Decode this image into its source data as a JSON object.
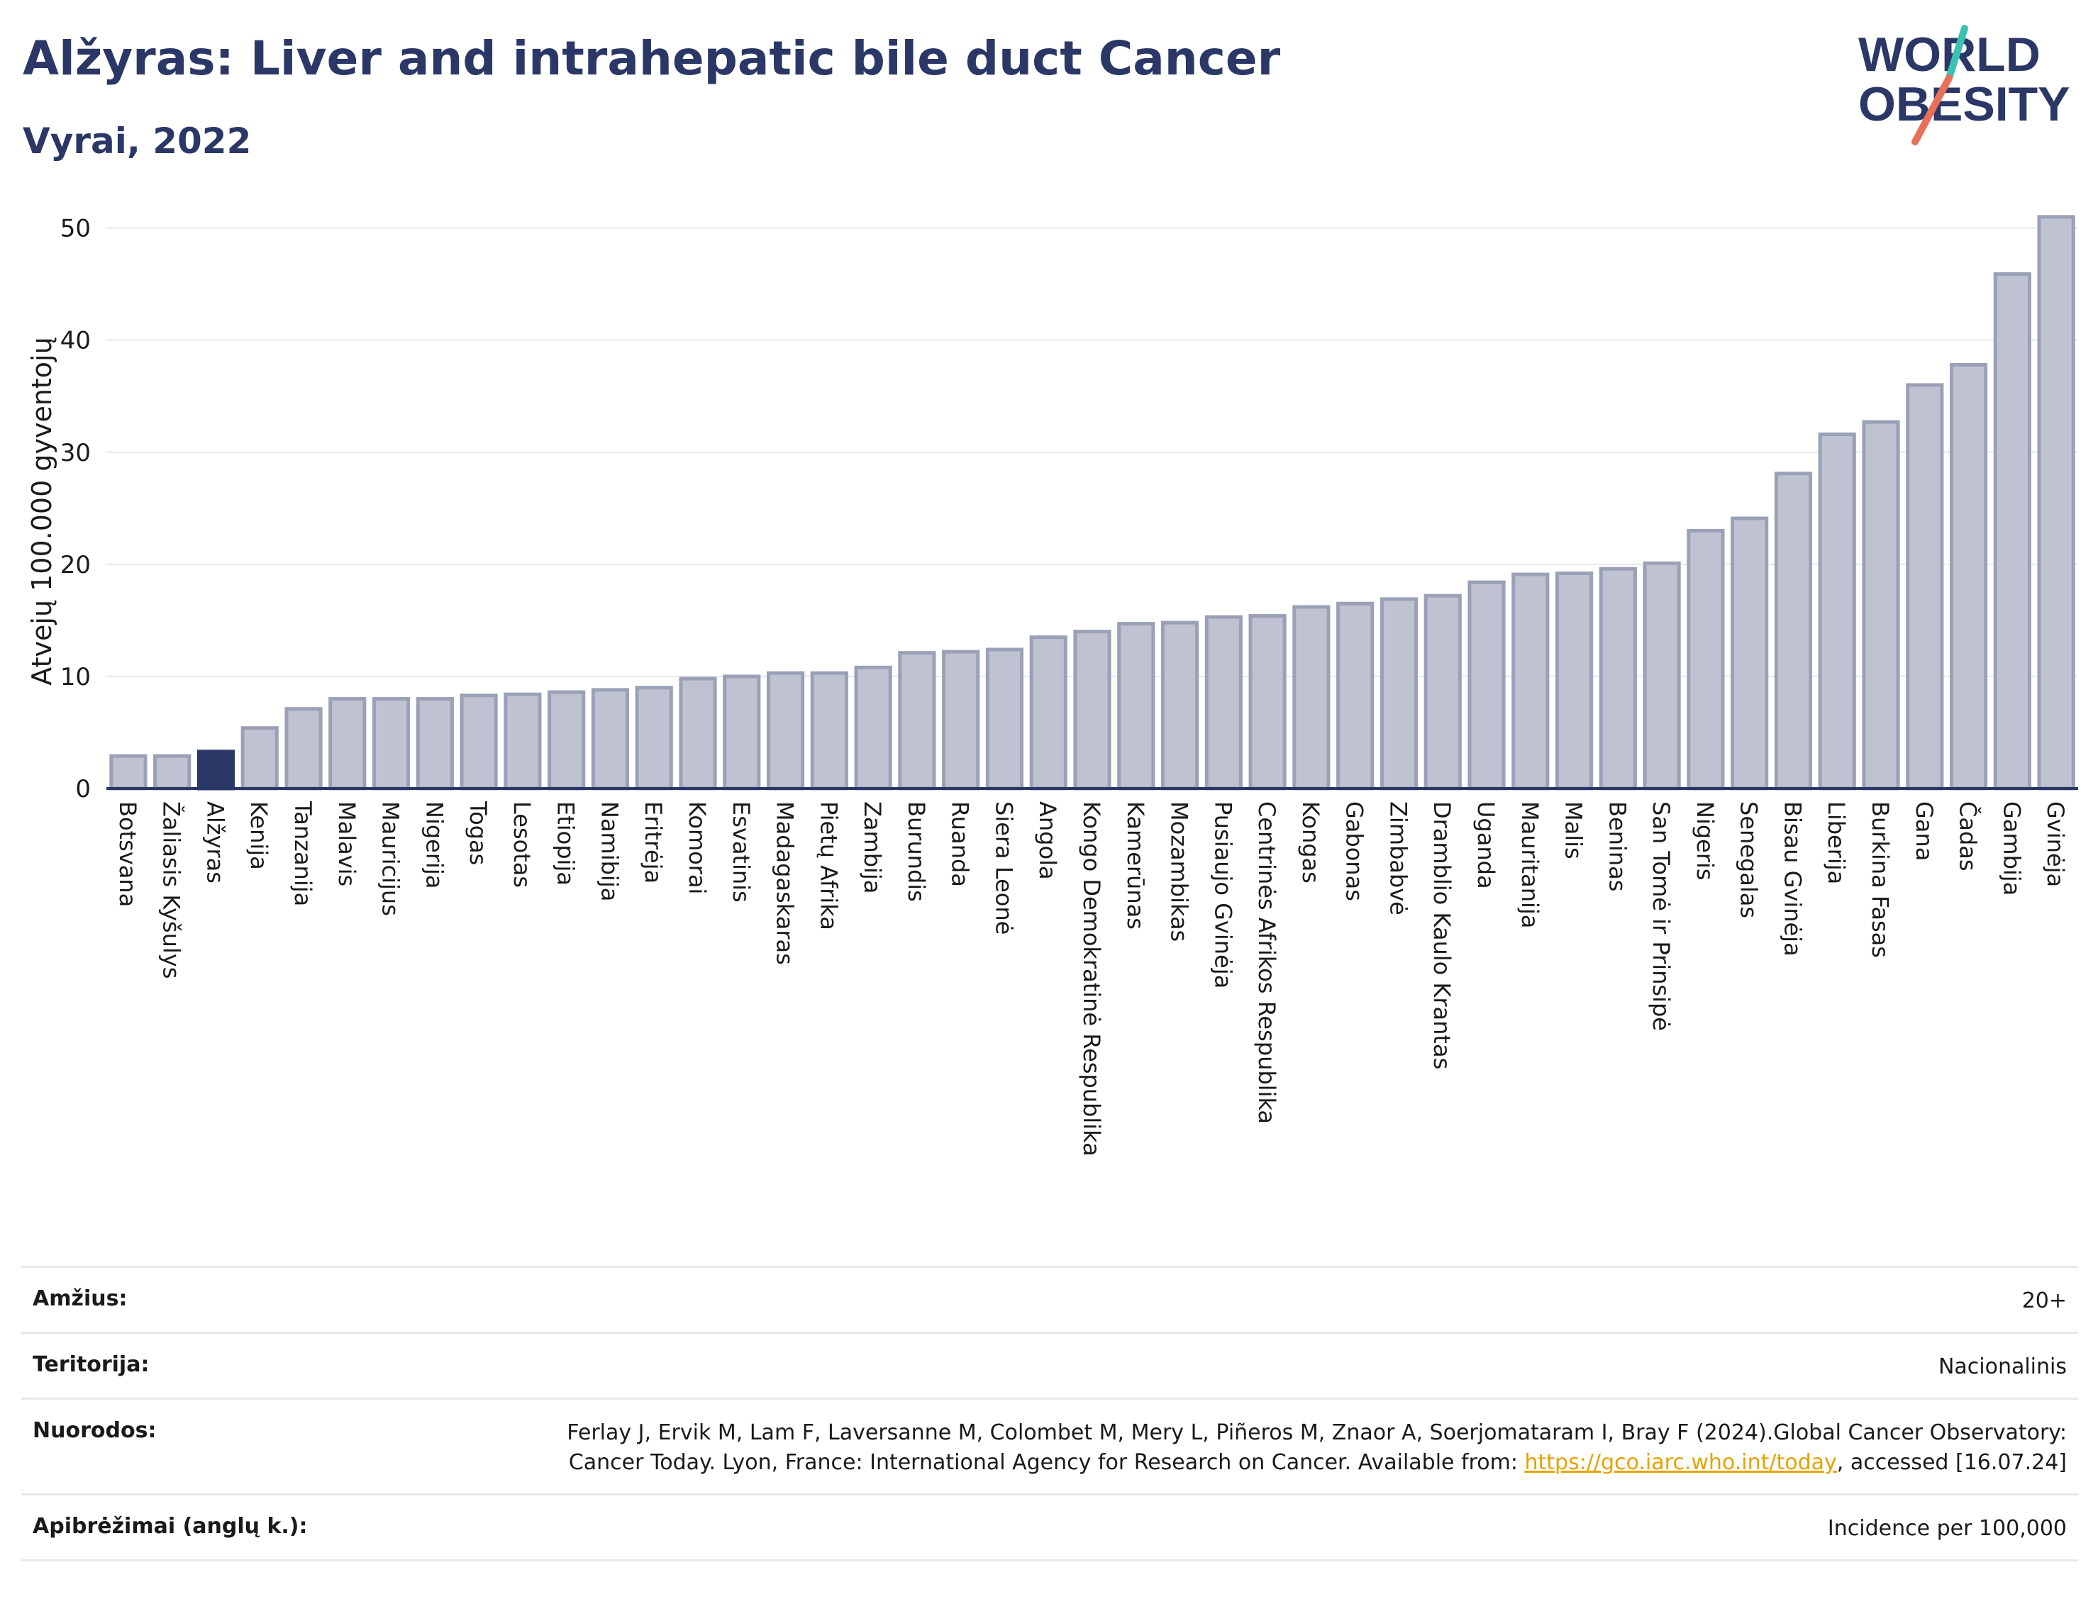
{
  "header": {
    "title": "Alžyras: Liver and intrahepatic bile duct Cancer",
    "subtitle": "Vyrai, 2022"
  },
  "logo": {
    "line1": "WORLD",
    "line2": "OBESITY",
    "brand_color": "#2b3766",
    "accent_teal": "#3cc0b0",
    "accent_red": "#e8705a"
  },
  "colors": {
    "bar_fill": "#bfc3d1",
    "bar_stroke": "#9aa1b7",
    "highlight_fill": "#2b3766",
    "grid": "#e6e8ee",
    "axis": "#2b3766"
  },
  "chart_data": {
    "type": "bar",
    "ylabel": "Atvejų 100.000 gyventojų",
    "ylim": [
      0,
      52
    ],
    "yticks": [
      0,
      10,
      20,
      30,
      40,
      50
    ],
    "highlight": "Alžyras",
    "categories": [
      "Botsvana",
      "Žaliasis Kyšulys",
      "Alžyras",
      "Kenija",
      "Tanzanija",
      "Malavis",
      "Mauricijus",
      "Nigerija",
      "Togas",
      "Lesotas",
      "Etiopija",
      "Namibija",
      "Eritrėja",
      "Komorai",
      "Esvatinis",
      "Madagaskaras",
      "Pietų Afrika",
      "Zambija",
      "Burundis",
      "Ruanda",
      "Siera Leonė",
      "Angola",
      "Kongo Demokratinė Respublika",
      "Kamerūnas",
      "Mozambikas",
      "Pusiaujo Gvinėja",
      "Centrinės Afrikos Respublika",
      "Kongas",
      "Gabonas",
      "Zimbabvė",
      "Dramblio Kaulo Krantas",
      "Uganda",
      "Mauritanija",
      "Malis",
      "Beninas",
      "San Tomė ir Prinsipė",
      "Nigeris",
      "Senegalas",
      "Bisau Gvinėja",
      "Liberija",
      "Burkina Fasas",
      "Gana",
      "Čadas",
      "Gambija",
      "Gvinėja"
    ],
    "values": [
      2.9,
      2.9,
      3.3,
      5.4,
      7.1,
      8.0,
      8.0,
      8.0,
      8.3,
      8.4,
      8.6,
      8.8,
      9.0,
      9.8,
      10.0,
      10.3,
      10.3,
      10.8,
      12.1,
      12.2,
      12.4,
      13.5,
      14.0,
      14.7,
      14.8,
      15.3,
      15.4,
      16.2,
      16.5,
      16.9,
      17.2,
      18.4,
      19.1,
      19.2,
      19.6,
      20.1,
      23.0,
      24.1,
      28.1,
      31.6,
      32.7,
      36.0,
      37.8,
      45.9,
      51.0
    ]
  },
  "meta": [
    {
      "label": "Amžius:",
      "value": "20+"
    },
    {
      "label": "Teritorija:",
      "value": "Nacionalinis"
    },
    {
      "label": "Nuorodos:",
      "value_pre": "Ferlay J, Ervik M, Lam F, Laversanne M, Colombet M, Mery L, Piñeros M, Znaor A, Soerjomataram I, Bray F (2024).Global Cancer Observatory: Cancer Today. Lyon, France: International Agency for Research on Cancer. Available from: ",
      "link": "https://gco.iarc.who.int/today",
      "value_post": ", accessed [16.07.24]"
    },
    {
      "label": "Apibrėžimai (anglų k.):",
      "value": "Incidence per 100,000"
    }
  ]
}
